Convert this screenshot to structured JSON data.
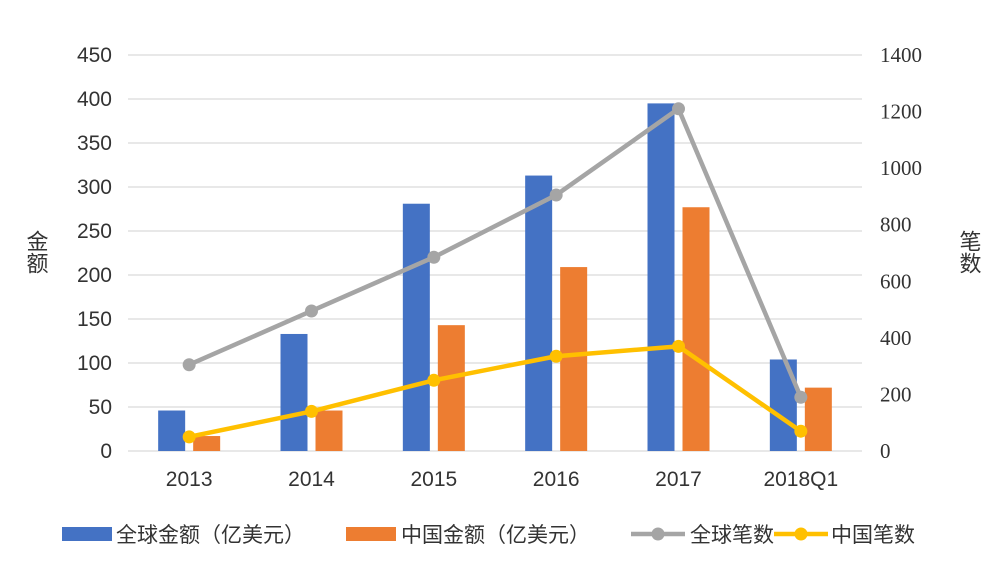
{
  "chart_data": {
    "type": "bar",
    "categories": [
      "2013",
      "2014",
      "2015",
      "2016",
      "2017",
      "2018Q1"
    ],
    "ylabel_left": "金额",
    "ylabel_right": "笔数",
    "ylim_left": [
      0,
      450
    ],
    "yticks_left": [
      "0",
      "50",
      "100",
      "150",
      "200",
      "250",
      "300",
      "350",
      "400",
      "450"
    ],
    "ylim_right": [
      0,
      1400
    ],
    "yticks_right": [
      "0",
      "200",
      "400",
      "600",
      "800",
      "1000",
      "1200",
      "1400"
    ],
    "grid": true,
    "legend_position": "bottom",
    "series": [
      {
        "name": "全球金额（亿美元）",
        "kind": "bar",
        "axis": "left",
        "color": "#4472C4",
        "values": [
          46,
          133,
          281,
          313,
          395,
          104
        ]
      },
      {
        "name": "中国金额（亿美元）",
        "kind": "bar",
        "axis": "left",
        "color": "#ED7D31",
        "values": [
          17,
          46,
          143,
          209,
          277,
          72
        ]
      },
      {
        "name": "全球笔数",
        "kind": "line",
        "axis": "right",
        "color": "#A5A5A5",
        "values": [
          305,
          495,
          685,
          905,
          1210,
          190
        ]
      },
      {
        "name": "中国笔数",
        "kind": "line",
        "axis": "right",
        "color": "#FFC000",
        "values": [
          50,
          140,
          250,
          335,
          370,
          70
        ]
      }
    ]
  }
}
